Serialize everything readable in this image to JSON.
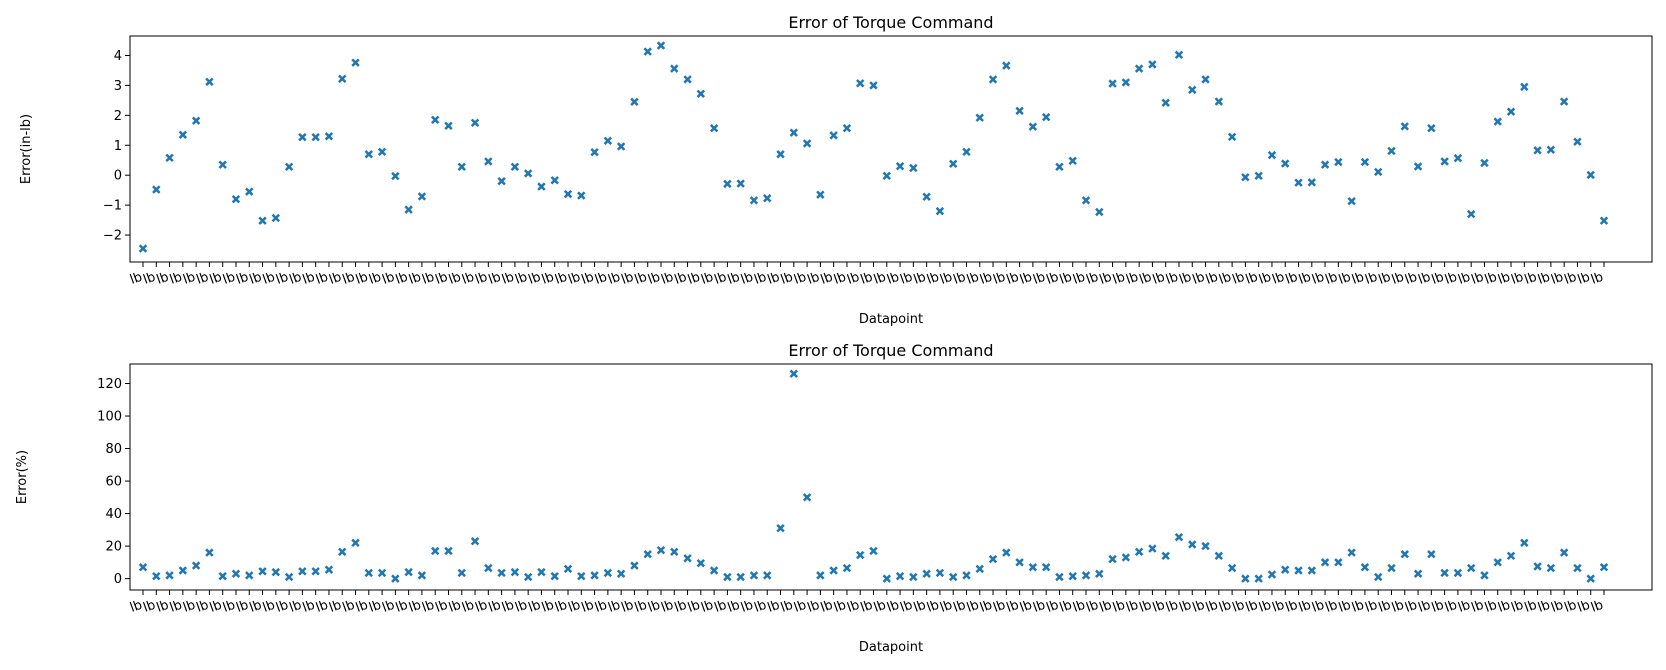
{
  "chart_data": [
    {
      "type": "scatter",
      "title": "Error of Torque Command",
      "xlabel": "Datapoint",
      "ylabel": "Error(in-lb)",
      "ylim": [
        -2.9,
        4.65
      ],
      "yticks": [
        -2,
        -1,
        0,
        1,
        2,
        3,
        4
      ],
      "marker_color": "#1f77b4",
      "x_tick_labels_note": "overlapping rotated labels ending in 'lb'",
      "values": [
        -2.45,
        -0.48,
        0.58,
        1.35,
        1.82,
        3.12,
        0.35,
        -0.8,
        -0.55,
        -1.52,
        -1.43,
        0.28,
        1.27,
        1.27,
        1.3,
        3.22,
        3.76,
        0.7,
        0.78,
        -0.03,
        -1.15,
        -0.71,
        1.85,
        1.65,
        0.28,
        1.75,
        0.46,
        -0.2,
        0.28,
        0.06,
        -0.38,
        -0.17,
        -0.63,
        -0.68,
        0.77,
        1.15,
        0.96,
        2.45,
        4.13,
        4.33,
        3.56,
        3.2,
        2.72,
        1.57,
        -0.29,
        -0.28,
        -0.84,
        -0.77,
        0.7,
        1.42,
        1.06,
        -0.65,
        1.33,
        1.57,
        3.07,
        3.0,
        -0.02,
        0.3,
        0.24,
        -0.72,
        -1.2,
        0.38,
        0.78,
        1.92,
        3.2,
        3.66,
        2.15,
        1.62,
        1.94,
        0.28,
        0.48,
        -0.84,
        -1.23,
        3.06,
        3.1,
        3.56,
        3.7,
        2.42,
        4.02,
        2.85,
        3.2,
        2.46,
        1.28,
        -0.07,
        -0.02,
        0.67,
        0.39,
        -0.25,
        -0.24,
        0.35,
        0.44,
        -0.87,
        0.44,
        0.11,
        0.81,
        1.63,
        0.29,
        1.57,
        0.46,
        0.57,
        -1.3,
        0.41,
        1.79,
        2.12,
        2.95,
        0.83,
        0.85,
        2.46,
        1.12,
        0.01,
        -1.52
      ]
    },
    {
      "type": "scatter",
      "title": "Error of Torque Command",
      "xlabel": "Datapoint",
      "ylabel": "Error(%)",
      "ylim": [
        -7,
        132
      ],
      "yticks": [
        0,
        20,
        40,
        60,
        80,
        100,
        120
      ],
      "marker_color": "#1f77b4",
      "values": [
        7,
        1.5,
        2,
        5,
        8,
        16,
        1.5,
        3,
        2,
        4.5,
        4,
        1,
        4.5,
        4.5,
        5.5,
        16.5,
        22,
        3.5,
        3.5,
        0,
        4,
        2,
        17,
        17,
        3.5,
        23,
        6.5,
        3.5,
        4,
        1,
        4,
        1.5,
        6,
        1.5,
        2,
        3.5,
        3,
        8,
        15,
        17.5,
        16.5,
        12.5,
        9.5,
        5,
        1,
        1,
        2,
        2,
        31,
        126,
        50,
        2,
        5,
        6.5,
        14.5,
        17,
        0,
        1.5,
        1,
        3,
        3.5,
        1,
        2,
        6,
        12,
        16,
        10,
        7,
        7,
        1,
        1.5,
        2,
        3,
        12,
        13,
        16.5,
        18.5,
        14,
        25.5,
        21,
        20,
        14,
        6.5,
        0,
        0,
        2.5,
        5.5,
        5,
        5,
        10,
        10,
        16,
        7,
        1,
        6.5,
        15,
        3,
        15,
        3.5,
        3.5,
        6.5,
        2,
        10,
        14,
        22,
        7.5,
        6.5,
        16,
        6.5,
        0,
        7
      ]
    }
  ]
}
